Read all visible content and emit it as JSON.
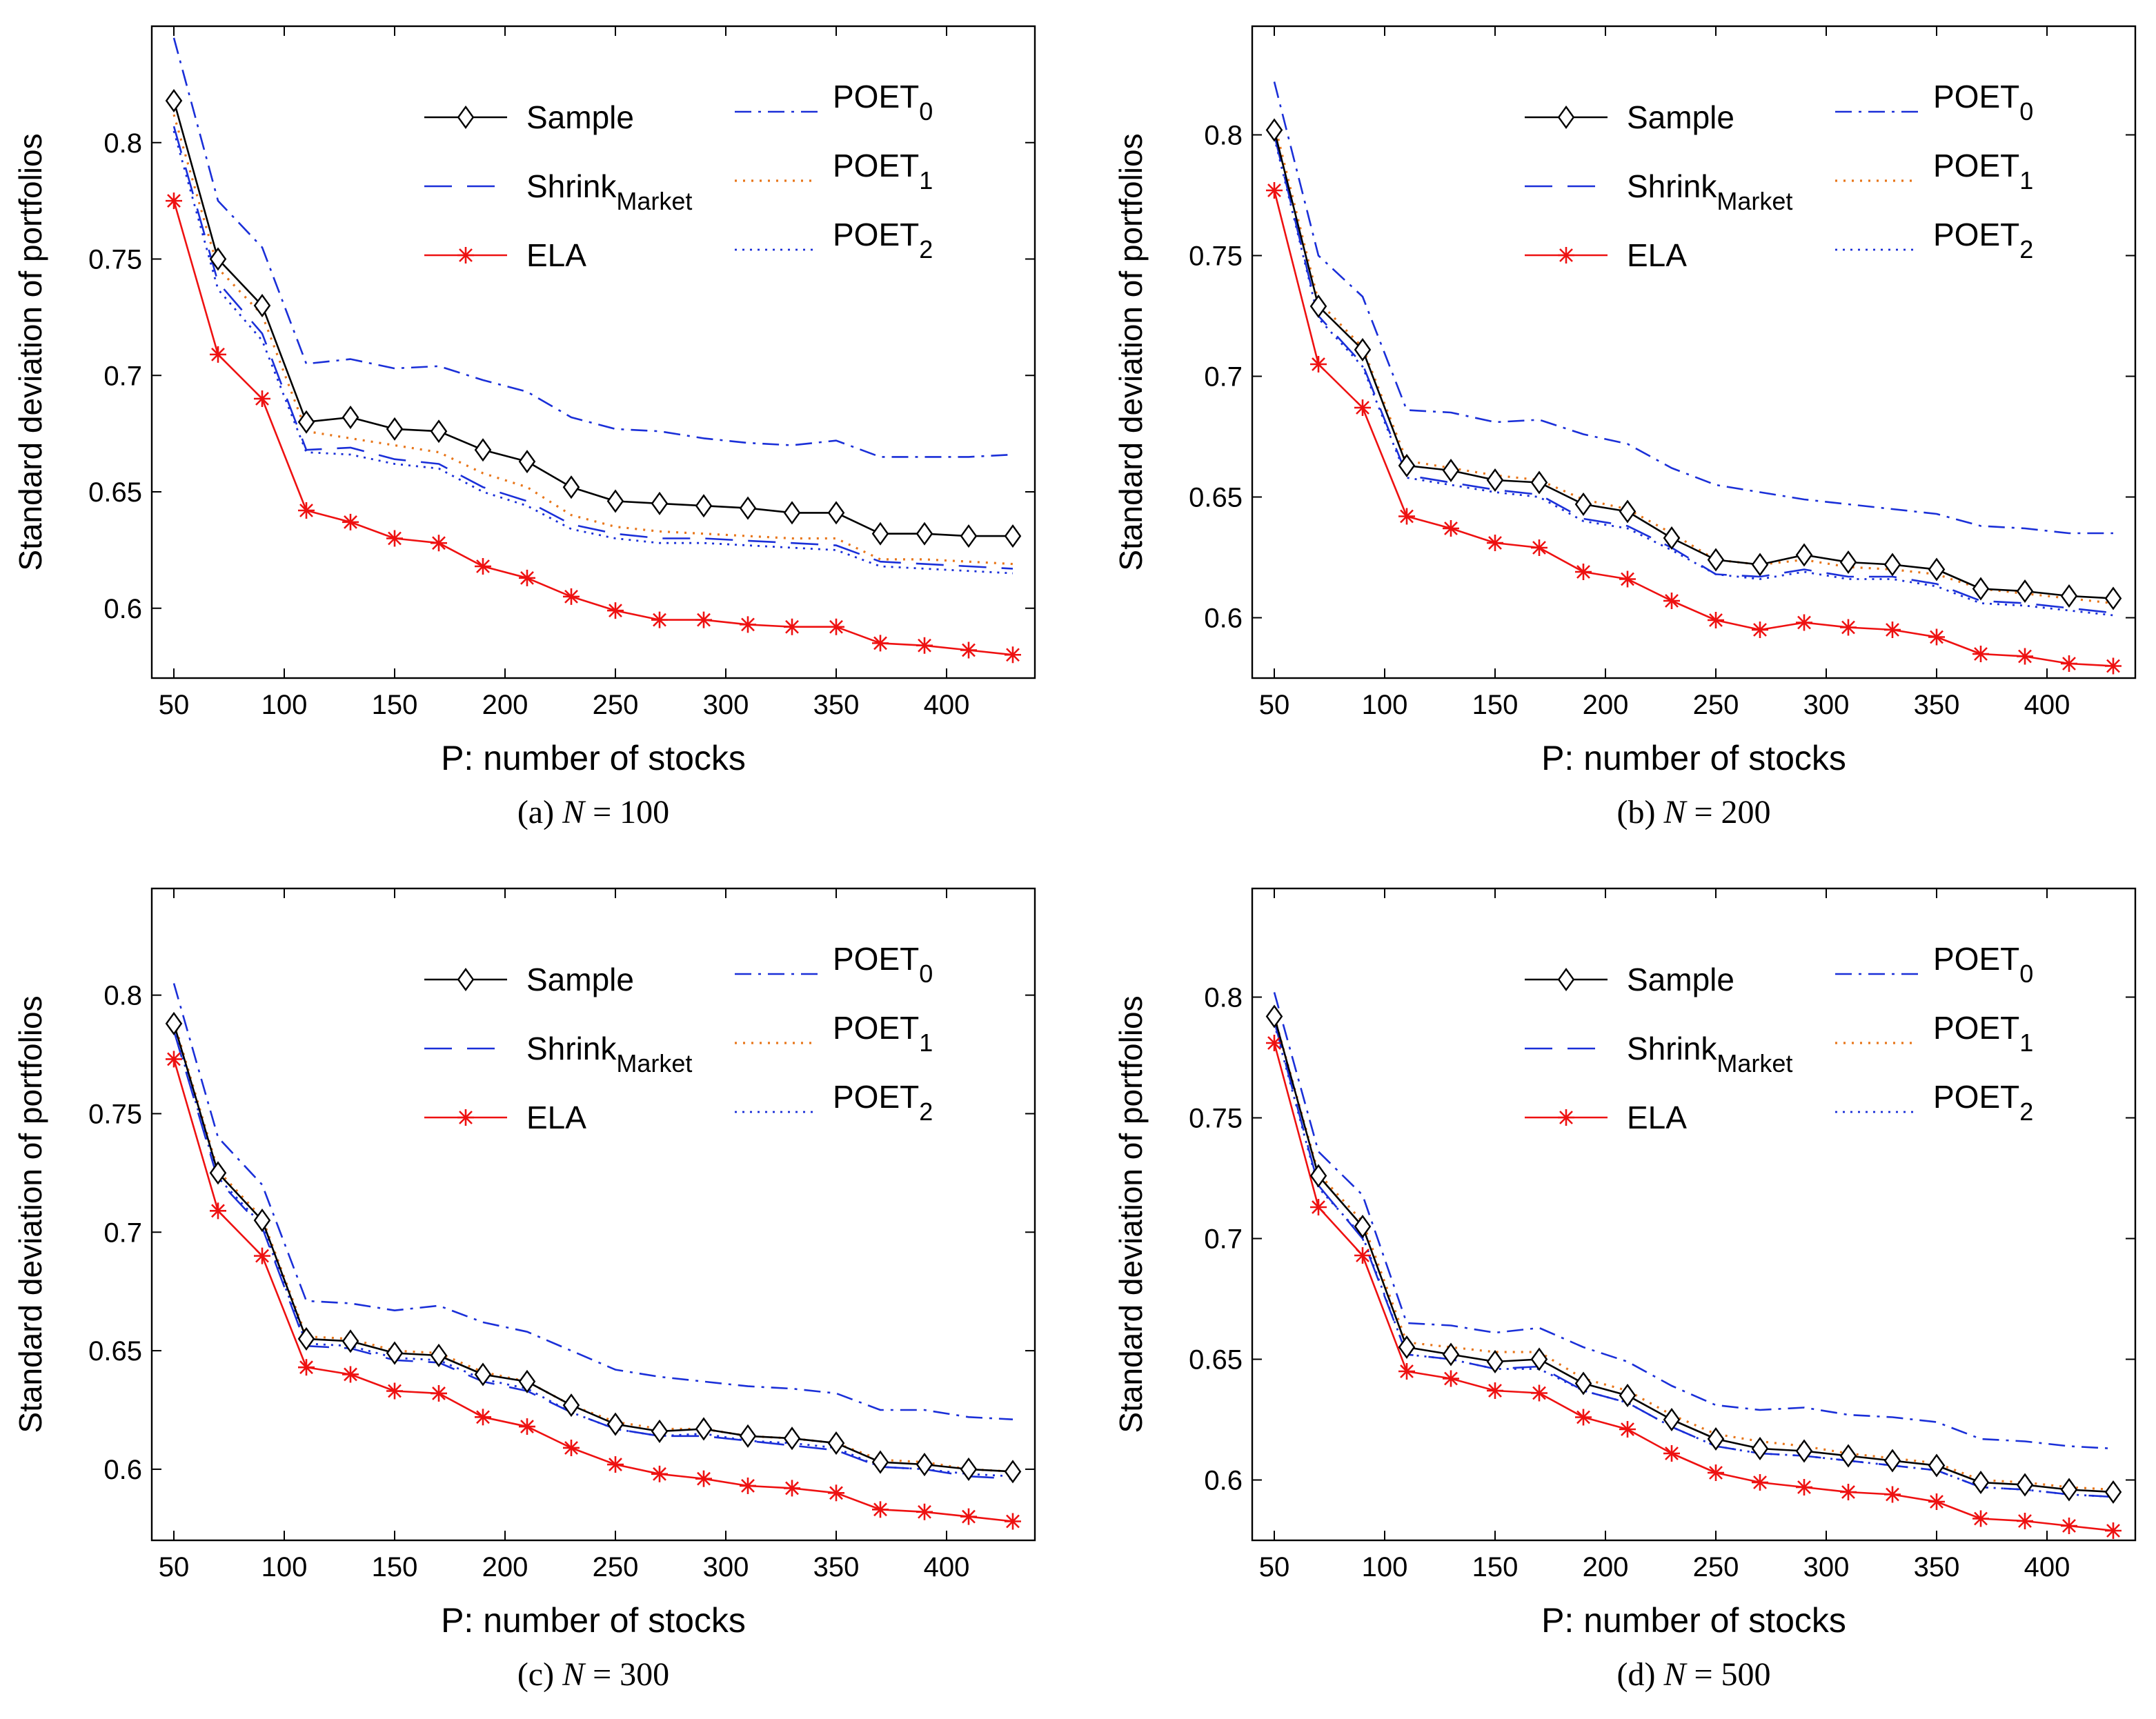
{
  "figure": {
    "colors": {
      "sample": "#000000",
      "shrink": "#1a2fd8",
      "ela": "#ee1111",
      "poet0": "#1a2fd8",
      "poet1": "#e8761a",
      "poet2": "#1a2fd8"
    }
  },
  "chart_data": [
    {
      "type": "line",
      "caption": {
        "prefix": "(a) ",
        "var": "N",
        "rest": " = 100"
      },
      "xlabel": "P: number of stocks",
      "ylabel": "Standard deviation of portfolios",
      "xlim": [
        40,
        440
      ],
      "ylim": [
        0.57,
        0.85
      ],
      "xticks": [
        "50",
        "100",
        "150",
        "200",
        "250",
        "300",
        "350",
        "400"
      ],
      "yticks": [
        "0.6",
        "0.65",
        "0.7",
        "0.75",
        "0.8"
      ],
      "x": [
        50,
        70,
        90,
        110,
        130,
        150,
        170,
        190,
        210,
        230,
        250,
        270,
        290,
        310,
        330,
        350,
        370,
        390,
        410,
        430
      ],
      "legend": {
        "sample": "Sample",
        "shrink_base": "Shrink",
        "shrink_sub": "Market",
        "ela": "ELA",
        "poet_base": "POET",
        "poet0_sub": "0",
        "poet1_sub": "1",
        "poet2_sub": "2"
      },
      "series": [
        {
          "name": "Sample",
          "values": [
            0.818,
            0.75,
            0.73,
            0.68,
            0.682,
            0.677,
            0.676,
            0.668,
            0.663,
            0.652,
            0.646,
            0.645,
            0.644,
            0.643,
            0.641,
            0.641,
            0.632,
            0.632,
            0.631,
            0.631
          ]
        },
        {
          "name": "Shrink_Market",
          "values": [
            0.807,
            0.74,
            0.718,
            0.668,
            0.669,
            0.664,
            0.662,
            0.652,
            0.646,
            0.636,
            0.632,
            0.63,
            0.63,
            0.629,
            0.628,
            0.627,
            0.62,
            0.619,
            0.618,
            0.617
          ]
        },
        {
          "name": "ELA",
          "values": [
            0.775,
            0.709,
            0.69,
            0.642,
            0.637,
            0.63,
            0.628,
            0.618,
            0.613,
            0.605,
            0.599,
            0.595,
            0.595,
            0.593,
            0.592,
            0.592,
            0.585,
            0.584,
            0.582,
            0.58
          ]
        },
        {
          "name": "POET_0",
          "values": [
            0.845,
            0.775,
            0.755,
            0.705,
            0.707,
            0.703,
            0.704,
            0.698,
            0.693,
            0.682,
            0.677,
            0.676,
            0.673,
            0.671,
            0.67,
            0.672,
            0.665,
            0.665,
            0.665,
            0.666
          ]
        },
        {
          "name": "POET_1",
          "values": [
            0.812,
            0.746,
            0.726,
            0.676,
            0.673,
            0.67,
            0.667,
            0.658,
            0.652,
            0.64,
            0.635,
            0.633,
            0.632,
            0.631,
            0.63,
            0.63,
            0.621,
            0.621,
            0.62,
            0.619
          ]
        },
        {
          "name": "POET_2",
          "values": [
            0.805,
            0.737,
            0.715,
            0.667,
            0.666,
            0.662,
            0.66,
            0.65,
            0.644,
            0.634,
            0.63,
            0.628,
            0.628,
            0.627,
            0.626,
            0.625,
            0.618,
            0.617,
            0.616,
            0.615
          ]
        }
      ]
    },
    {
      "type": "line",
      "caption": {
        "prefix": "(b) ",
        "var": "N",
        "rest": " = 200"
      },
      "xlabel": "P: number of stocks",
      "ylabel": "Standard deviation of portfolios",
      "xlim": [
        40,
        440
      ],
      "ylim": [
        0.575,
        0.845
      ],
      "xticks": [
        "50",
        "100",
        "150",
        "200",
        "250",
        "300",
        "350",
        "400"
      ],
      "yticks": [
        "0.6",
        "0.65",
        "0.7",
        "0.75",
        "0.8"
      ],
      "x": [
        50,
        70,
        90,
        110,
        130,
        150,
        170,
        190,
        210,
        230,
        250,
        270,
        290,
        310,
        330,
        350,
        370,
        390,
        410,
        430
      ],
      "legend": {
        "sample": "Sample",
        "shrink_base": "Shrink",
        "shrink_sub": "Market",
        "ela": "ELA",
        "poet_base": "POET",
        "poet0_sub": "0",
        "poet1_sub": "1",
        "poet2_sub": "2"
      },
      "series": [
        {
          "name": "Sample",
          "values": [
            0.802,
            0.729,
            0.711,
            0.663,
            0.661,
            0.657,
            0.656,
            0.647,
            0.644,
            0.633,
            0.624,
            0.622,
            0.626,
            0.623,
            0.622,
            0.62,
            0.612,
            0.611,
            0.609,
            0.608
          ]
        },
        {
          "name": "Shrink_Market",
          "values": [
            0.8,
            0.725,
            0.705,
            0.659,
            0.656,
            0.653,
            0.651,
            0.641,
            0.638,
            0.629,
            0.618,
            0.617,
            0.62,
            0.617,
            0.617,
            0.614,
            0.607,
            0.606,
            0.604,
            0.602
          ]
        },
        {
          "name": "ELA",
          "values": [
            0.777,
            0.705,
            0.687,
            0.642,
            0.637,
            0.631,
            0.629,
            0.619,
            0.616,
            0.607,
            0.599,
            0.595,
            0.598,
            0.596,
            0.595,
            0.592,
            0.585,
            0.584,
            0.581,
            0.58
          ]
        },
        {
          "name": "POET_0",
          "values": [
            0.822,
            0.75,
            0.733,
            0.686,
            0.685,
            0.681,
            0.682,
            0.676,
            0.672,
            0.662,
            0.655,
            0.652,
            0.649,
            0.647,
            0.645,
            0.643,
            0.638,
            0.637,
            0.635,
            0.635
          ]
        },
        {
          "name": "POET_1",
          "values": [
            0.805,
            0.731,
            0.712,
            0.665,
            0.662,
            0.659,
            0.657,
            0.649,
            0.645,
            0.635,
            0.624,
            0.622,
            0.624,
            0.621,
            0.62,
            0.618,
            0.612,
            0.61,
            0.608,
            0.606
          ]
        },
        {
          "name": "POET_2",
          "values": [
            0.799,
            0.724,
            0.704,
            0.658,
            0.655,
            0.652,
            0.65,
            0.64,
            0.637,
            0.628,
            0.618,
            0.616,
            0.619,
            0.616,
            0.616,
            0.613,
            0.606,
            0.605,
            0.603,
            0.601
          ]
        }
      ]
    },
    {
      "type": "line",
      "caption": {
        "prefix": "(c) ",
        "var": "N",
        "rest": " = 300"
      },
      "xlabel": "P: number of stocks",
      "ylabel": "Standard deviation of portfolios",
      "xlim": [
        40,
        440
      ],
      "ylim": [
        0.57,
        0.845
      ],
      "xticks": [
        "50",
        "100",
        "150",
        "200",
        "250",
        "300",
        "350",
        "400"
      ],
      "yticks": [
        "0.6",
        "0.65",
        "0.7",
        "0.75",
        "0.8"
      ],
      "x": [
        50,
        70,
        90,
        110,
        130,
        150,
        170,
        190,
        210,
        230,
        250,
        270,
        290,
        310,
        330,
        350,
        370,
        390,
        410,
        430
      ],
      "legend": {
        "sample": "Sample",
        "shrink_base": "Shrink",
        "shrink_sub": "Market",
        "ela": "ELA",
        "poet_base": "POET",
        "poet0_sub": "0",
        "poet1_sub": "1",
        "poet2_sub": "2"
      },
      "series": [
        {
          "name": "Sample",
          "values": [
            0.788,
            0.725,
            0.705,
            0.655,
            0.654,
            0.649,
            0.648,
            0.64,
            0.637,
            0.627,
            0.619,
            0.616,
            0.617,
            0.614,
            0.613,
            0.611,
            0.603,
            0.602,
            0.6,
            0.599
          ]
        },
        {
          "name": "Shrink_Market",
          "values": [
            0.785,
            0.722,
            0.702,
            0.652,
            0.651,
            0.646,
            0.645,
            0.637,
            0.633,
            0.624,
            0.617,
            0.614,
            0.614,
            0.612,
            0.61,
            0.608,
            0.601,
            0.6,
            0.597,
            0.596
          ]
        },
        {
          "name": "ELA",
          "values": [
            0.773,
            0.709,
            0.69,
            0.643,
            0.64,
            0.633,
            0.632,
            0.622,
            0.618,
            0.609,
            0.602,
            0.598,
            0.596,
            0.593,
            0.592,
            0.59,
            0.583,
            0.582,
            0.58,
            0.578
          ]
        },
        {
          "name": "POET_0",
          "values": [
            0.805,
            0.74,
            0.72,
            0.671,
            0.67,
            0.667,
            0.669,
            0.662,
            0.658,
            0.65,
            0.642,
            0.639,
            0.637,
            0.635,
            0.634,
            0.632,
            0.625,
            0.625,
            0.622,
            0.621
          ]
        },
        {
          "name": "POET_1",
          "values": [
            0.789,
            0.726,
            0.706,
            0.656,
            0.655,
            0.65,
            0.649,
            0.641,
            0.637,
            0.627,
            0.62,
            0.617,
            0.617,
            0.614,
            0.613,
            0.611,
            0.604,
            0.603,
            0.6,
            0.599
          ]
        },
        {
          "name": "POET_2",
          "values": [
            0.786,
            0.723,
            0.703,
            0.653,
            0.652,
            0.647,
            0.646,
            0.638,
            0.634,
            0.624,
            0.617,
            0.614,
            0.615,
            0.612,
            0.611,
            0.609,
            0.601,
            0.6,
            0.598,
            0.597
          ]
        }
      ]
    },
    {
      "type": "line",
      "caption": {
        "prefix": "(d) ",
        "var": "N",
        "rest": " = 500"
      },
      "xlabel": "P: number of stocks",
      "ylabel": "Standard deviation of portfolios",
      "xlim": [
        40,
        440
      ],
      "ylim": [
        0.575,
        0.845
      ],
      "xticks": [
        "50",
        "100",
        "150",
        "200",
        "250",
        "300",
        "350",
        "400"
      ],
      "yticks": [
        "0.6",
        "0.65",
        "0.7",
        "0.75",
        "0.8"
      ],
      "x": [
        50,
        70,
        90,
        110,
        130,
        150,
        170,
        190,
        210,
        230,
        250,
        270,
        290,
        310,
        330,
        350,
        370,
        390,
        410,
        430
      ],
      "legend": {
        "sample": "Sample",
        "shrink_base": "Shrink",
        "shrink_sub": "Market",
        "ela": "ELA",
        "poet_base": "POET",
        "poet0_sub": "0",
        "poet1_sub": "1",
        "poet2_sub": "2"
      },
      "series": [
        {
          "name": "Sample",
          "values": [
            0.792,
            0.726,
            0.705,
            0.655,
            0.652,
            0.649,
            0.65,
            0.64,
            0.635,
            0.625,
            0.617,
            0.613,
            0.612,
            0.61,
            0.608,
            0.606,
            0.599,
            0.598,
            0.596,
            0.595
          ]
        },
        {
          "name": "Shrink_Market",
          "values": [
            0.79,
            0.722,
            0.7,
            0.652,
            0.65,
            0.646,
            0.647,
            0.637,
            0.632,
            0.622,
            0.614,
            0.611,
            0.61,
            0.608,
            0.606,
            0.604,
            0.597,
            0.596,
            0.594,
            0.593
          ]
        },
        {
          "name": "ELA",
          "values": [
            0.781,
            0.713,
            0.693,
            0.645,
            0.642,
            0.637,
            0.636,
            0.626,
            0.621,
            0.611,
            0.603,
            0.599,
            0.597,
            0.595,
            0.594,
            0.591,
            0.584,
            0.583,
            0.581,
            0.579
          ]
        },
        {
          "name": "POET_0",
          "values": [
            0.802,
            0.736,
            0.718,
            0.665,
            0.664,
            0.661,
            0.663,
            0.655,
            0.649,
            0.639,
            0.631,
            0.629,
            0.63,
            0.627,
            0.626,
            0.624,
            0.617,
            0.616,
            0.614,
            0.613
          ]
        },
        {
          "name": "POET_1",
          "values": [
            0.792,
            0.727,
            0.707,
            0.657,
            0.655,
            0.653,
            0.653,
            0.642,
            0.637,
            0.627,
            0.619,
            0.616,
            0.614,
            0.611,
            0.609,
            0.607,
            0.6,
            0.599,
            0.597,
            0.596
          ]
        },
        {
          "name": "POET_2",
          "values": [
            0.789,
            0.721,
            0.701,
            0.652,
            0.65,
            0.646,
            0.646,
            0.637,
            0.632,
            0.622,
            0.614,
            0.611,
            0.61,
            0.608,
            0.606,
            0.604,
            0.597,
            0.596,
            0.594,
            0.593
          ]
        }
      ]
    }
  ]
}
